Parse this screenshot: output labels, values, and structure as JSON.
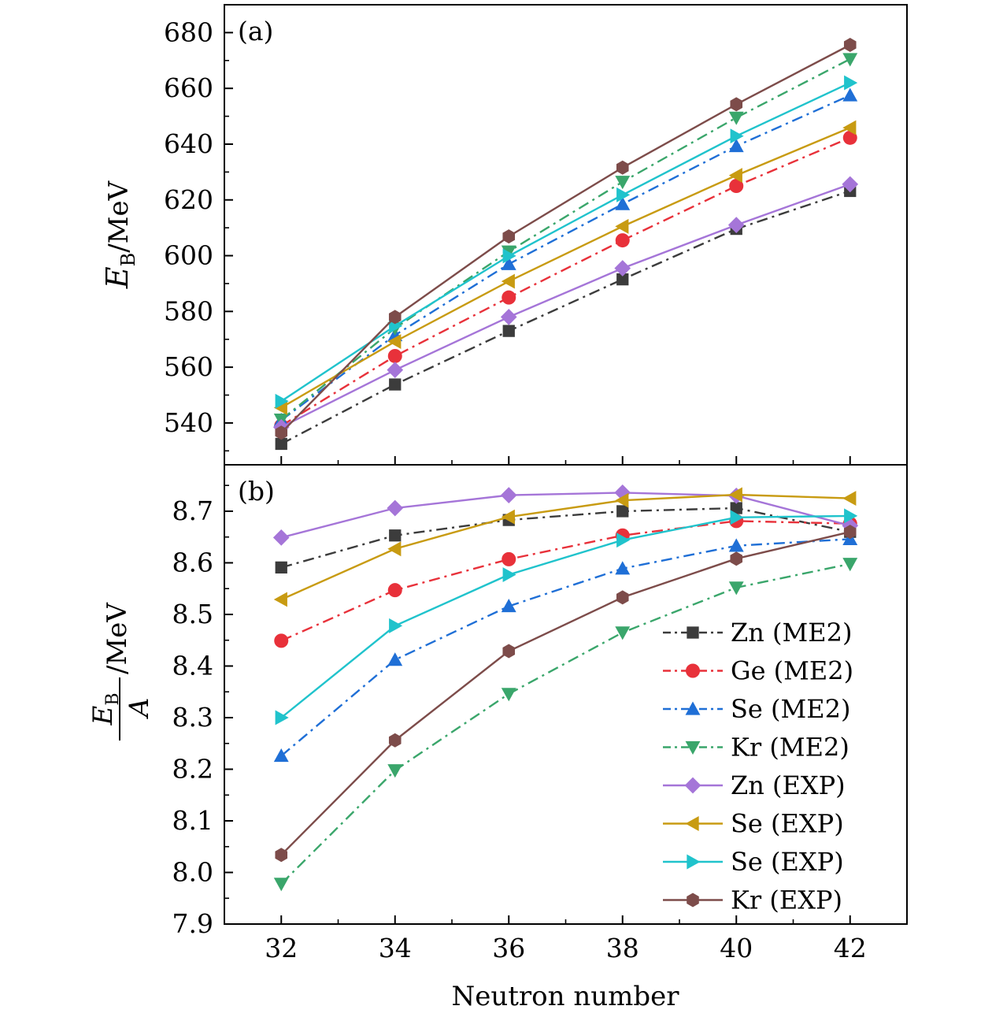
{
  "chart_data": [
    {
      "type": "line",
      "panel_label": "(a)",
      "xlabel": "Neutron number",
      "ylabel_base": "E",
      "ylabel_sub": "B",
      "ylabel_unit": "/MeV",
      "x": [
        32,
        34,
        36,
        38,
        40,
        42
      ],
      "x_ticks": [
        "32",
        "34",
        "36",
        "38",
        "40",
        "42"
      ],
      "xlim": [
        31,
        43
      ],
      "ylim": [
        525,
        690
      ],
      "y_ticks": [
        540,
        560,
        580,
        600,
        620,
        640,
        660,
        680
      ],
      "y_tick_labels": [
        "540",
        "560",
        "580",
        "600",
        "620",
        "640",
        "660",
        "680"
      ],
      "series": [
        {
          "name": "Zn (ME2)",
          "values": [
            532.5,
            553.8,
            573.0,
            591.5,
            609.6,
            623.2
          ],
          "color": "#3c3c3c",
          "marker": "square",
          "dash": "dashdot"
        },
        {
          "name": "Ge (ME2)",
          "values": [
            539.0,
            564.0,
            585.0,
            605.5,
            625.0,
            642.3
          ],
          "color": "#e8313a",
          "marker": "circle",
          "dash": "dashdot"
        },
        {
          "name": "Se (ME2)",
          "values": [
            541.0,
            571.5,
            597.0,
            618.5,
            639.3,
            657.5
          ],
          "color": "#1f6fd6",
          "marker": "triangle-up",
          "dash": "dashdot"
        },
        {
          "name": "Kr (ME2)",
          "values": [
            541.2,
            574.0,
            601.5,
            626.5,
            649.5,
            670.5
          ],
          "color": "#3aa66b",
          "marker": "triangle-down",
          "dash": "dashdot"
        },
        {
          "name": "Zn (EXP)",
          "values": [
            538.5,
            559.0,
            578.0,
            595.5,
            611.0,
            625.6
          ],
          "color": "#a575d8",
          "marker": "diamond",
          "dash": "solid"
        },
        {
          "name": "Se (EXP)",
          "values": [
            545.5,
            569.2,
            590.8,
            610.5,
            628.8,
            645.9
          ],
          "color": "#c89b12",
          "marker": "triangle-left",
          "dash": "solid"
        },
        {
          "name": "Se (EXP)",
          "values": [
            547.8,
            574.8,
            599.9,
            621.8,
            642.9,
            662.0
          ],
          "color": "#20c3cc",
          "marker": "triangle-right",
          "dash": "solid"
        },
        {
          "name": "Kr (EXP)",
          "values": [
            536.5,
            578.0,
            606.9,
            631.6,
            654.3,
            675.6
          ],
          "color": "#7d4c4a",
          "marker": "hexagon",
          "dash": "solid"
        }
      ]
    },
    {
      "type": "line",
      "panel_label": "(b)",
      "xlabel": "Neutron number",
      "ylabel_num_base": "E",
      "ylabel_num_sub": "B",
      "ylabel_den": "A",
      "ylabel_unit": "/MeV",
      "x": [
        32,
        34,
        36,
        38,
        40,
        42
      ],
      "x_ticks": [
        "32",
        "34",
        "36",
        "38",
        "40",
        "42"
      ],
      "xlim": [
        31,
        43
      ],
      "ylim": [
        7.9,
        8.79
      ],
      "y_ticks": [
        7.9,
        8.0,
        8.1,
        8.2,
        8.3,
        8.4,
        8.5,
        8.6,
        8.7
      ],
      "y_tick_labels": [
        "7.9",
        "8.0",
        "8.1",
        "8.2",
        "8.3",
        "8.4",
        "8.5",
        "8.6",
        "8.7"
      ],
      "legend_position": "lower-right",
      "series": [
        {
          "name": "Zn (ME2)",
          "values": [
            8.591,
            8.653,
            8.683,
            8.7,
            8.706,
            8.66
          ],
          "color": "#3c3c3c",
          "marker": "square",
          "dash": "dashdot"
        },
        {
          "name": "Ge (ME2)",
          "values": [
            8.449,
            8.547,
            8.607,
            8.653,
            8.681,
            8.676
          ],
          "color": "#e8313a",
          "marker": "circle",
          "dash": "dashdot"
        },
        {
          "name": "Se (ME2)",
          "values": [
            8.226,
            8.412,
            8.516,
            8.589,
            8.633,
            8.646
          ],
          "color": "#1f6fd6",
          "marker": "triangle-up",
          "dash": "dashdot"
        },
        {
          "name": "Kr (ME2)",
          "values": [
            7.978,
            8.198,
            8.346,
            8.465,
            8.552,
            8.598
          ],
          "color": "#3aa66b",
          "marker": "triangle-down",
          "dash": "dashdot"
        },
        {
          "name": "Zn (EXP)",
          "values": [
            8.649,
            8.706,
            8.731,
            8.736,
            8.73,
            8.672
          ],
          "color": "#a575d8",
          "marker": "diamond",
          "dash": "solid"
        },
        {
          "name": "Se (EXP)",
          "values": [
            8.529,
            8.627,
            8.689,
            8.721,
            8.732,
            8.725
          ],
          "color": "#c89b12",
          "marker": "triangle-left",
          "dash": "solid"
        },
        {
          "name": "Se (EXP)",
          "values": [
            8.3,
            8.478,
            8.577,
            8.644,
            8.688,
            8.691
          ],
          "color": "#20c3cc",
          "marker": "triangle-right",
          "dash": "solid"
        },
        {
          "name": "Kr (EXP)",
          "values": [
            8.034,
            8.256,
            8.429,
            8.533,
            8.608,
            8.66
          ],
          "color": "#7d4c4a",
          "marker": "hexagon",
          "dash": "solid"
        }
      ]
    }
  ]
}
